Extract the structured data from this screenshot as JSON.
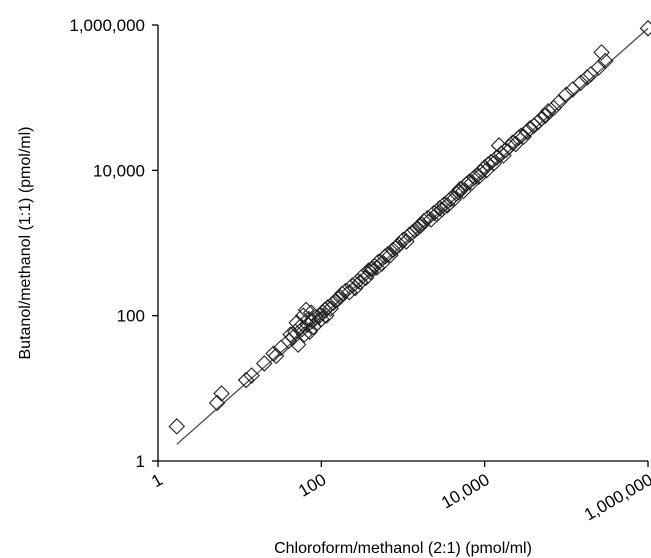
{
  "chart_data": {
    "type": "scatter",
    "title": "",
    "xlabel": "Chloroform/methanol (2:1)  (pmol/ml)",
    "ylabel": "Butanol/methanol (1:1)  (pmol/ml)",
    "xscale": "log",
    "yscale": "log",
    "xlim": [
      1,
      1000000
    ],
    "ylim": [
      1,
      1000000
    ],
    "x_ticks": [
      1,
      100,
      10000,
      1000000
    ],
    "x_tick_labels": [
      "1",
      "100",
      "10,000",
      "1,000,000"
    ],
    "y_ticks": [
      1,
      100,
      10000,
      1000000
    ],
    "y_tick_labels": [
      "1",
      "100",
      "10,000",
      "1,000,000"
    ],
    "grid": false,
    "legend": "none",
    "marker": "open-diamond",
    "fit_line": {
      "x": [
        1.7,
        1000000
      ],
      "y": [
        1.7,
        900000
      ]
    },
    "points": [
      [
        1.7,
        3.0
      ],
      [
        5.3,
        6.3
      ],
      [
        6.0,
        8.5
      ],
      [
        12,
        13
      ],
      [
        14,
        15
      ],
      [
        20,
        22
      ],
      [
        26,
        30
      ],
      [
        28,
        28
      ],
      [
        32,
        36
      ],
      [
        40,
        45
      ],
      [
        42,
        55
      ],
      [
        45,
        50
      ],
      [
        48,
        60
      ],
      [
        50,
        80
      ],
      [
        52,
        40
      ],
      [
        55,
        70
      ],
      [
        58,
        65
      ],
      [
        60,
        100
      ],
      [
        62,
        55
      ],
      [
        65,
        120
      ],
      [
        68,
        75
      ],
      [
        70,
        90
      ],
      [
        72,
        60
      ],
      [
        75,
        110
      ],
      [
        78,
        85
      ],
      [
        80,
        70
      ],
      [
        85,
        95
      ],
      [
        90,
        80
      ],
      [
        95,
        100
      ],
      [
        100,
        90
      ],
      [
        105,
        110
      ],
      [
        110,
        120
      ],
      [
        115,
        100
      ],
      [
        120,
        130
      ],
      [
        130,
        125
      ],
      [
        140,
        150
      ],
      [
        150,
        160
      ],
      [
        160,
        170
      ],
      [
        170,
        180
      ],
      [
        180,
        200
      ],
      [
        200,
        220
      ],
      [
        220,
        210
      ],
      [
        240,
        260
      ],
      [
        260,
        240
      ],
      [
        280,
        300
      ],
      [
        300,
        290
      ],
      [
        320,
        350
      ],
      [
        350,
        330
      ],
      [
        380,
        420
      ],
      [
        400,
        400
      ],
      [
        420,
        450
      ],
      [
        450,
        480
      ],
      [
        480,
        460
      ],
      [
        500,
        550
      ],
      [
        550,
        520
      ],
      [
        600,
        650
      ],
      [
        650,
        700
      ],
      [
        700,
        680
      ],
      [
        750,
        800
      ],
      [
        800,
        850
      ],
      [
        850,
        900
      ],
      [
        900,
        950
      ],
      [
        1000,
        1100
      ],
      [
        1100,
        1050
      ],
      [
        1200,
        1300
      ],
      [
        1300,
        1400
      ],
      [
        1400,
        1500
      ],
      [
        1500,
        1600
      ],
      [
        1600,
        1700
      ],
      [
        1700,
        1800
      ],
      [
        1800,
        2000
      ],
      [
        2000,
        2200
      ],
      [
        2200,
        2100
      ],
      [
        2400,
        2600
      ],
      [
        2600,
        2500
      ],
      [
        2800,
        3000
      ],
      [
        3000,
        2900
      ],
      [
        3200,
        3400
      ],
      [
        3500,
        3300
      ],
      [
        3800,
        4000
      ],
      [
        4000,
        4200
      ],
      [
        4200,
        4000
      ],
      [
        4500,
        4800
      ],
      [
        4800,
        5000
      ],
      [
        5000,
        5500
      ],
      [
        5500,
        5200
      ],
      [
        6000,
        6500
      ],
      [
        6500,
        7000
      ],
      [
        7000,
        6800
      ],
      [
        7500,
        8000
      ],
      [
        8000,
        8500
      ],
      [
        8500,
        8200
      ],
      [
        9000,
        9500
      ],
      [
        10000,
        11000
      ],
      [
        10500,
        10000
      ],
      [
        11000,
        12000
      ],
      [
        12000,
        13000
      ],
      [
        13000,
        12500
      ],
      [
        14000,
        15000
      ],
      [
        15000,
        22000
      ],
      [
        16000,
        17000
      ],
      [
        17000,
        16000
      ],
      [
        18000,
        19000
      ],
      [
        20000,
        21000
      ],
      [
        22000,
        24000
      ],
      [
        24000,
        23000
      ],
      [
        26000,
        28000
      ],
      [
        28000,
        30000
      ],
      [
        30000,
        29000
      ],
      [
        33000,
        34000
      ],
      [
        36000,
        38000
      ],
      [
        40000,
        41000
      ],
      [
        45000,
        46000
      ],
      [
        50000,
        52000
      ],
      [
        55000,
        56000
      ],
      [
        60000,
        65000
      ],
      [
        70000,
        72000
      ],
      [
        80000,
        85000
      ],
      [
        100000,
        110000
      ],
      [
        120000,
        130000
      ],
      [
        150000,
        160000
      ],
      [
        180000,
        190000
      ],
      [
        200000,
        210000
      ],
      [
        250000,
        260000
      ],
      [
        270000,
        420000
      ],
      [
        300000,
        320000
      ],
      [
        1000000,
        900000
      ]
    ]
  }
}
